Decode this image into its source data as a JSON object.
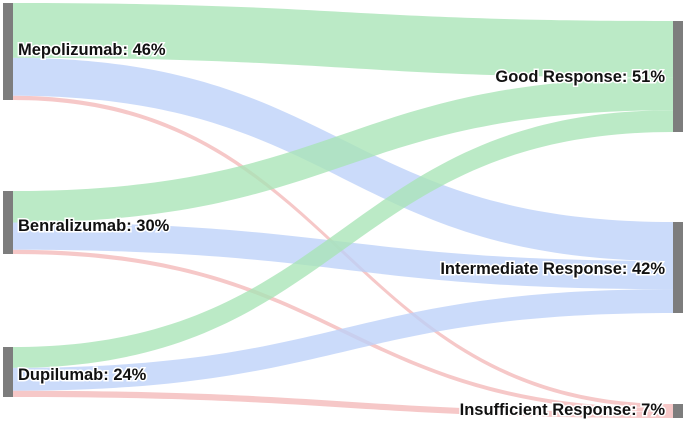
{
  "colors": {
    "good": "#a8e4b6",
    "intermediate": "#bcd1f8",
    "insufficient": "#f4b8b8",
    "node_bar": "#7d7d7d"
  },
  "nodes": {
    "sources": [
      {
        "id": "mepolizumab",
        "label": "Mepolizumab: 46%",
        "value": 46
      },
      {
        "id": "benralizumab",
        "label": "Benralizumab: 30%",
        "value": 30
      },
      {
        "id": "dupilumab",
        "label": "Dupilumab: 24%",
        "value": 24
      }
    ],
    "targets": [
      {
        "id": "good",
        "label": "Good Response: 51%",
        "value": 51
      },
      {
        "id": "intermediate",
        "label": "Intermediate Response: 42%",
        "value": 42
      },
      {
        "id": "insufficient",
        "label": "Insufficient Response: 7%",
        "value": 7
      }
    ]
  },
  "links": [
    {
      "source": "mepolizumab",
      "target": "good",
      "value": 26
    },
    {
      "source": "mepolizumab",
      "target": "intermediate",
      "value": 18
    },
    {
      "source": "mepolizumab",
      "target": "insufficient",
      "value": 2
    },
    {
      "source": "benralizumab",
      "target": "good",
      "value": 15
    },
    {
      "source": "benralizumab",
      "target": "intermediate",
      "value": 13
    },
    {
      "source": "benralizumab",
      "target": "insufficient",
      "value": 2
    },
    {
      "source": "dupilumab",
      "target": "good",
      "value": 10
    },
    {
      "source": "dupilumab",
      "target": "intermediate",
      "value": 11
    },
    {
      "source": "dupilumab",
      "target": "insufficient",
      "value": 3
    }
  ]
}
